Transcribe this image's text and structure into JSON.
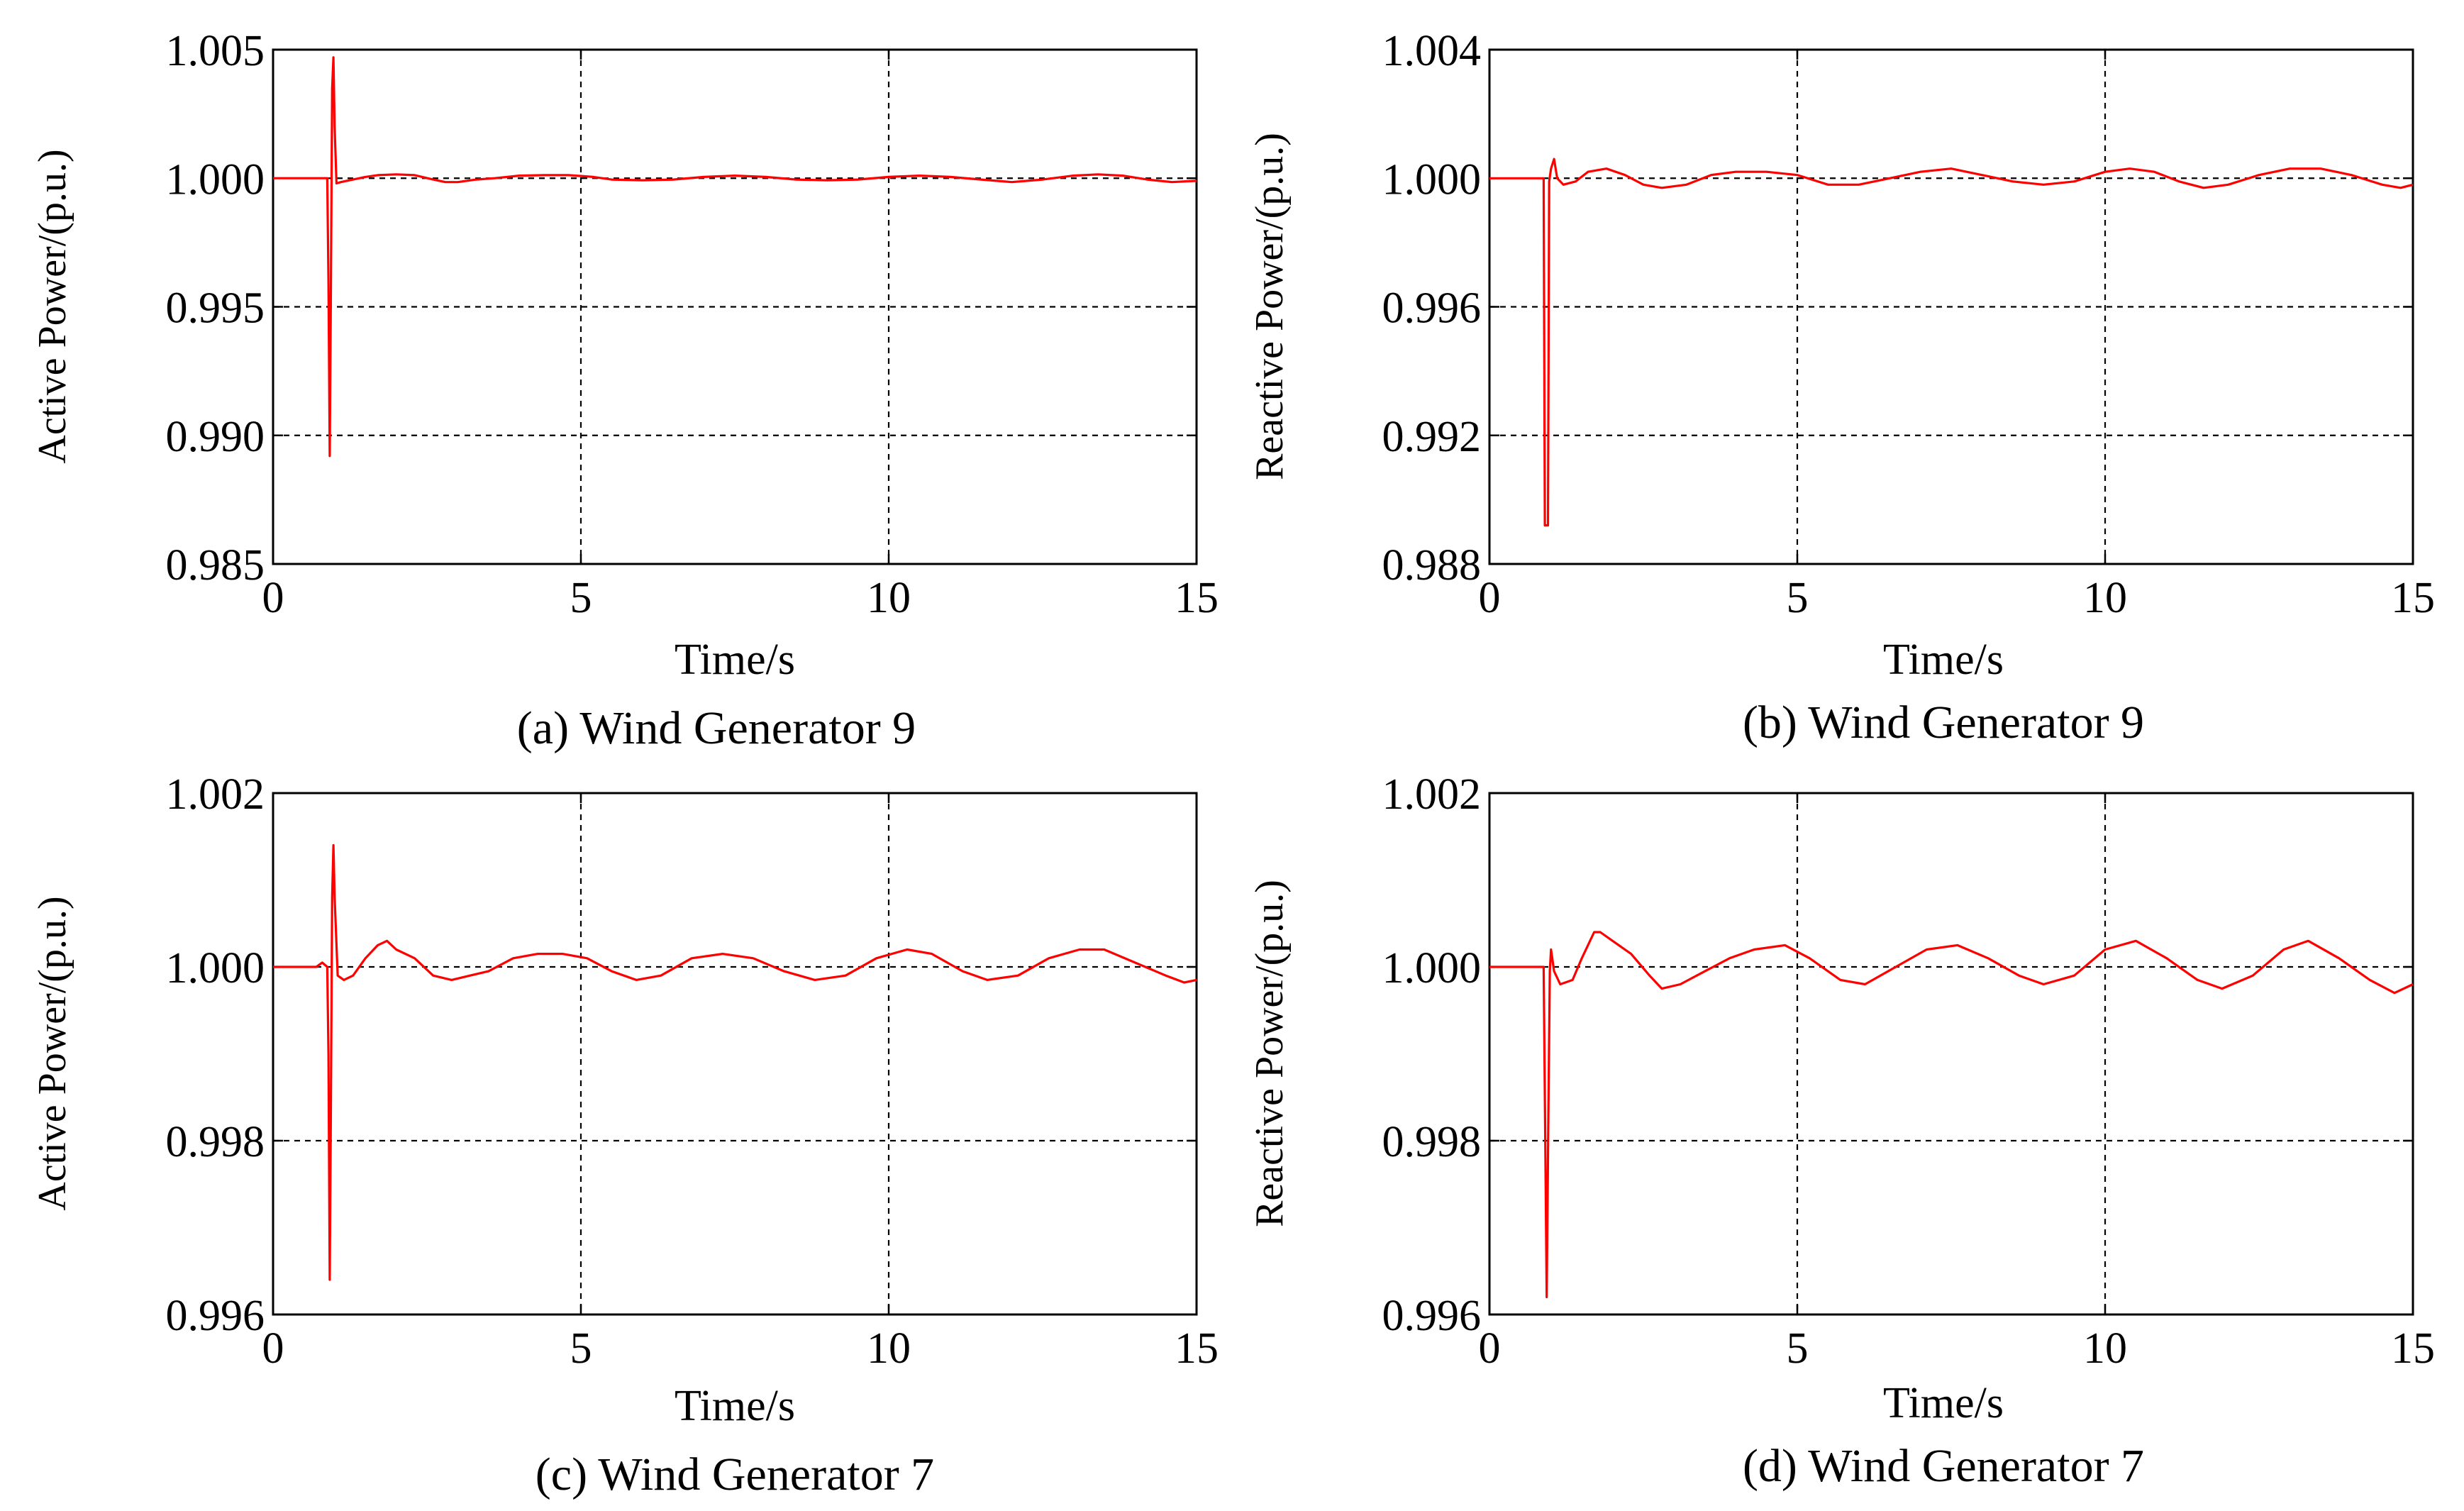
{
  "chart_data": [
    {
      "id": "a",
      "type": "line",
      "caption": "(a) Wind Generator 9",
      "xlabel": "Time/s",
      "ylabel": "Active Power/(p.u.)",
      "xlim": [
        0,
        15
      ],
      "ylim": [
        0.985,
        1.005
      ],
      "xticks": [
        0,
        5,
        10,
        15
      ],
      "yticks": [
        "0.985",
        "0.990",
        "0.995",
        "1.000",
        "1.005"
      ],
      "color": "#ff0000",
      "series": [
        {
          "name": "Active Power",
          "points": [
            [
              0,
              1.0
            ],
            [
              0.88,
              1.0
            ],
            [
              0.9,
              0.996
            ],
            [
              0.92,
              0.9892
            ],
            [
              0.94,
              0.996
            ],
            [
              0.96,
              1.0035
            ],
            [
              0.98,
              1.0047
            ],
            [
              1.0,
              1.002
            ],
            [
              1.03,
              0.9998
            ],
            [
              1.1,
              0.99985
            ],
            [
              1.3,
              0.99995
            ],
            [
              1.5,
              1.00005
            ],
            [
              1.7,
              1.00012
            ],
            [
              2.0,
              1.00015
            ],
            [
              2.3,
              1.00012
            ],
            [
              2.6,
              0.99995
            ],
            [
              2.8,
              0.99985
            ],
            [
              3.0,
              0.99985
            ],
            [
              3.3,
              0.99995
            ],
            [
              3.6,
              1.0
            ],
            [
              4.0,
              1.0001
            ],
            [
              4.4,
              1.00012
            ],
            [
              4.8,
              1.00012
            ],
            [
              5.2,
              1.00005
            ],
            [
              5.5,
              0.99995
            ],
            [
              6.0,
              0.99992
            ],
            [
              6.5,
              0.99995
            ],
            [
              7.0,
              1.00005
            ],
            [
              7.5,
              1.0001
            ],
            [
              8.0,
              1.00005
            ],
            [
              8.5,
              0.99995
            ],
            [
              9.0,
              0.99992
            ],
            [
              9.5,
              0.99995
            ],
            [
              10.0,
              1.00005
            ],
            [
              10.5,
              1.0001
            ],
            [
              11.0,
              1.00005
            ],
            [
              11.5,
              0.99995
            ],
            [
              12.0,
              0.99985
            ],
            [
              12.5,
              0.99995
            ],
            [
              13.0,
              1.0001
            ],
            [
              13.4,
              1.00015
            ],
            [
              13.8,
              1.0001
            ],
            [
              14.2,
              0.99995
            ],
            [
              14.6,
              0.99985
            ],
            [
              15.0,
              0.9999
            ]
          ]
        }
      ]
    },
    {
      "id": "b",
      "type": "line",
      "caption": "(b) Wind Generator 9",
      "xlabel": "Time/s",
      "ylabel": "Reactive Power/(p.u.)",
      "xlim": [
        0,
        15
      ],
      "ylim": [
        0.988,
        1.004
      ],
      "xticks": [
        0,
        5,
        10,
        15
      ],
      "yticks": [
        "0.988",
        "0.992",
        "0.996",
        "1.000",
        "1.004"
      ],
      "color": "#ff0000",
      "series": [
        {
          "name": "Reactive Power",
          "points": [
            [
              0,
              1.0
            ],
            [
              0.88,
              1.0
            ],
            [
              0.9,
              0.9892
            ],
            [
              0.95,
              0.9892
            ],
            [
              0.97,
              0.9999
            ],
            [
              1.0,
              1.0003
            ],
            [
              1.05,
              1.0006
            ],
            [
              1.1,
              1.0
            ],
            [
              1.2,
              0.9998
            ],
            [
              1.4,
              0.9999
            ],
            [
              1.6,
              1.0002
            ],
            [
              1.9,
              1.0003
            ],
            [
              2.2,
              1.0001
            ],
            [
              2.5,
              0.9998
            ],
            [
              2.8,
              0.9997
            ],
            [
              3.2,
              0.9998
            ],
            [
              3.6,
              1.0001
            ],
            [
              4.0,
              1.0002
            ],
            [
              4.5,
              1.0002
            ],
            [
              5.0,
              1.0001
            ],
            [
              5.5,
              0.9998
            ],
            [
              6.0,
              0.9998
            ],
            [
              6.5,
              1.0
            ],
            [
              7.0,
              1.0002
            ],
            [
              7.5,
              1.0003
            ],
            [
              8.0,
              1.0001
            ],
            [
              8.5,
              0.9999
            ],
            [
              9.0,
              0.9998
            ],
            [
              9.5,
              0.9999
            ],
            [
              10.0,
              1.0002
            ],
            [
              10.4,
              1.0003
            ],
            [
              10.8,
              1.0002
            ],
            [
              11.2,
              0.9999
            ],
            [
              11.6,
              0.9997
            ],
            [
              12.0,
              0.9998
            ],
            [
              12.5,
              1.0001
            ],
            [
              13.0,
              1.0003
            ],
            [
              13.5,
              1.0003
            ],
            [
              14.0,
              1.0001
            ],
            [
              14.5,
              0.9998
            ],
            [
              14.8,
              0.9997
            ],
            [
              15.0,
              0.9998
            ]
          ]
        }
      ]
    },
    {
      "id": "c",
      "type": "line",
      "caption": "(c) Wind Generator 7",
      "xlabel": "Time/s",
      "ylabel": "Active Power/(p.u.)",
      "xlim": [
        0,
        15
      ],
      "ylim": [
        0.996,
        1.002
      ],
      "xticks": [
        0,
        5,
        10,
        15
      ],
      "yticks": [
        "0.996",
        "0.998",
        "1.000",
        "1.002"
      ],
      "color": "#ff0000",
      "series": [
        {
          "name": "Active Power",
          "points": [
            [
              0,
              1.0
            ],
            [
              0.7,
              1.0
            ],
            [
              0.8,
              1.00005
            ],
            [
              0.88,
              1.0
            ],
            [
              0.9,
              0.999
            ],
            [
              0.92,
              0.9964
            ],
            [
              0.94,
              0.9985
            ],
            [
              0.96,
              1.0008
            ],
            [
              0.98,
              1.0014
            ],
            [
              1.0,
              1.0008
            ],
            [
              1.05,
              0.9999
            ],
            [
              1.15,
              0.99985
            ],
            [
              1.3,
              0.9999
            ],
            [
              1.5,
              1.0001
            ],
            [
              1.7,
              1.00025
            ],
            [
              1.85,
              1.0003
            ],
            [
              2.0,
              1.0002
            ],
            [
              2.3,
              1.0001
            ],
            [
              2.6,
              0.9999
            ],
            [
              2.9,
              0.99985
            ],
            [
              3.2,
              0.9999
            ],
            [
              3.5,
              0.99995
            ],
            [
              3.9,
              1.0001
            ],
            [
              4.3,
              1.00015
            ],
            [
              4.7,
              1.00015
            ],
            [
              5.1,
              1.0001
            ],
            [
              5.5,
              0.99995
            ],
            [
              5.9,
              0.99985
            ],
            [
              6.3,
              0.9999
            ],
            [
              6.8,
              1.0001
            ],
            [
              7.3,
              1.00015
            ],
            [
              7.8,
              1.0001
            ],
            [
              8.3,
              0.99995
            ],
            [
              8.8,
              0.99985
            ],
            [
              9.3,
              0.9999
            ],
            [
              9.8,
              1.0001
            ],
            [
              10.3,
              1.0002
            ],
            [
              10.7,
              1.00015
            ],
            [
              11.2,
              0.99995
            ],
            [
              11.6,
              0.99985
            ],
            [
              12.1,
              0.9999
            ],
            [
              12.6,
              1.0001
            ],
            [
              13.1,
              1.0002
            ],
            [
              13.5,
              1.0002
            ],
            [
              14.0,
              1.00005
            ],
            [
              14.5,
              0.9999
            ],
            [
              14.8,
              0.99982
            ],
            [
              15.0,
              0.99985
            ]
          ]
        }
      ]
    },
    {
      "id": "d",
      "type": "line",
      "caption": "(d) Wind Generator 7",
      "xlabel": "Time/s",
      "ylabel": "Reactive Power/(p.u.)",
      "xlim": [
        0,
        15
      ],
      "ylim": [
        0.996,
        1.002
      ],
      "xticks": [
        0,
        5,
        10,
        15
      ],
      "yticks": [
        "0.996",
        "0.998",
        "1.000",
        "1.002"
      ],
      "color": "#ff0000",
      "series": [
        {
          "name": "Reactive Power",
          "points": [
            [
              0,
              1.0
            ],
            [
              0.88,
              1.0
            ],
            [
              0.9,
              0.9985
            ],
            [
              0.93,
              0.9962
            ],
            [
              0.96,
              0.9985
            ],
            [
              0.98,
              0.99995
            ],
            [
              1.0,
              1.0002
            ],
            [
              1.05,
              0.99995
            ],
            [
              1.15,
              0.9998
            ],
            [
              1.35,
              0.99985
            ],
            [
              1.5,
              1.0001
            ],
            [
              1.7,
              1.0004
            ],
            [
              1.8,
              1.0004
            ],
            [
              2.0,
              1.0003
            ],
            [
              2.3,
              1.00015
            ],
            [
              2.6,
              0.9999
            ],
            [
              2.8,
              0.99975
            ],
            [
              3.1,
              0.9998
            ],
            [
              3.5,
              0.99995
            ],
            [
              3.9,
              1.0001
            ],
            [
              4.3,
              1.0002
            ],
            [
              4.8,
              1.00025
            ],
            [
              5.2,
              1.0001
            ],
            [
              5.7,
              0.99985
            ],
            [
              6.1,
              0.9998
            ],
            [
              6.6,
              1.0
            ],
            [
              7.1,
              1.0002
            ],
            [
              7.6,
              1.00025
            ],
            [
              8.1,
              1.0001
            ],
            [
              8.6,
              0.9999
            ],
            [
              9.0,
              0.9998
            ],
            [
              9.5,
              0.9999
            ],
            [
              10.0,
              1.0002
            ],
            [
              10.5,
              1.0003
            ],
            [
              11.0,
              1.0001
            ],
            [
              11.5,
              0.99985
            ],
            [
              11.9,
              0.99975
            ],
            [
              12.4,
              0.9999
            ],
            [
              12.9,
              1.0002
            ],
            [
              13.3,
              1.0003
            ],
            [
              13.8,
              1.0001
            ],
            [
              14.3,
              0.99985
            ],
            [
              14.7,
              0.9997
            ],
            [
              15.0,
              0.9998
            ]
          ]
        }
      ]
    }
  ]
}
